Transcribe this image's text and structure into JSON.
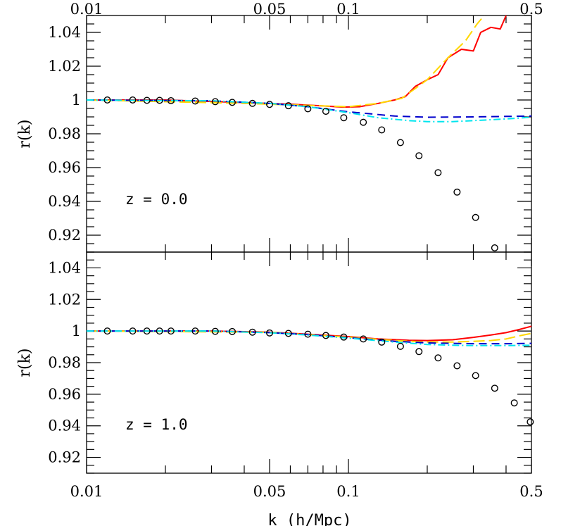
{
  "chart_data": [
    {
      "type": "line",
      "panel": "top",
      "annotation": "z = 0.0",
      "ylabel": "r(k)",
      "xscale": "log",
      "xlim": [
        0.01,
        0.5
      ],
      "ylim": [
        0.91,
        1.05
      ],
      "x_tick_labels": [
        "0.01",
        "0.05",
        "0.1",
        "0.5"
      ],
      "x_tick_label_values": [
        0.01,
        0.05,
        0.1,
        0.5
      ],
      "y_tick_labels": [
        "0.92",
        "0.94",
        "0.96",
        "0.98",
        "1",
        "1.02",
        "1.04"
      ],
      "y_tick_label_values": [
        0.92,
        0.94,
        0.96,
        0.98,
        1.0,
        1.02,
        1.04
      ],
      "series": [
        {
          "style": "solid",
          "color": "#ff0000",
          "x": [
            0.01,
            0.02,
            0.04,
            0.06,
            0.08,
            0.095,
            0.11,
            0.13,
            0.15,
            0.165,
            0.18,
            0.2,
            0.22,
            0.24,
            0.27,
            0.3,
            0.32,
            0.35,
            0.38,
            0.4
          ],
          "y": [
            1.0,
            1.0,
            0.9985,
            0.9975,
            0.9965,
            0.9958,
            0.996,
            0.998,
            1.0,
            1.002,
            1.008,
            1.012,
            1.015,
            1.025,
            1.03,
            1.029,
            1.04,
            1.043,
            1.042,
            1.05
          ]
        },
        {
          "style": "long-dash",
          "color": "#ffd700",
          "x": [
            0.01,
            0.04,
            0.08,
            0.1,
            0.13,
            0.16,
            0.2,
            0.24,
            0.28,
            0.31,
            0.33
          ],
          "y": [
            1.0,
            0.998,
            0.9965,
            0.996,
            0.998,
            1.001,
            1.012,
            1.025,
            1.035,
            1.045,
            1.05
          ]
        },
        {
          "style": "dashed",
          "color": "#0000cc",
          "x": [
            0.01,
            0.03,
            0.05,
            0.07,
            0.1,
            0.15,
            0.2,
            0.3,
            0.4,
            0.5
          ],
          "y": [
            1.0,
            0.9995,
            0.998,
            0.996,
            0.993,
            0.9905,
            0.9898,
            0.99,
            0.9903,
            0.9905
          ]
        },
        {
          "style": "dash-dot",
          "color": "#00e5ee",
          "x": [
            0.01,
            0.03,
            0.05,
            0.07,
            0.1,
            0.13,
            0.17,
            0.2,
            0.25,
            0.3,
            0.4,
            0.5
          ],
          "y": [
            1.0,
            0.9995,
            0.998,
            0.996,
            0.9925,
            0.9895,
            0.9878,
            0.9872,
            0.9872,
            0.9878,
            0.9888,
            0.9898
          ]
        },
        {
          "style": "open-circle",
          "color": "#000000",
          "x": [
            0.012,
            0.015,
            0.017,
            0.019,
            0.021,
            0.026,
            0.031,
            0.036,
            0.043,
            0.05,
            0.059,
            0.07,
            0.082,
            0.096,
            0.114,
            0.134,
            0.158,
            0.186,
            0.22,
            0.26,
            0.306,
            0.362
          ],
          "y": [
            1.0,
            1.0,
            0.9998,
            0.9998,
            0.9996,
            0.9994,
            0.999,
            0.9986,
            0.998,
            0.9974,
            0.9966,
            0.9948,
            0.9933,
            0.9895,
            0.9868,
            0.9823,
            0.9748,
            0.967,
            0.957,
            0.9455,
            0.9305,
            0.9125
          ]
        }
      ]
    },
    {
      "type": "line",
      "panel": "bottom",
      "annotation": "z = 1.0",
      "ylabel": "r(k)",
      "xlabel": "k (h/Mpc)",
      "xscale": "log",
      "xlim": [
        0.01,
        0.5
      ],
      "ylim": [
        0.91,
        1.05
      ],
      "x_tick_labels": [
        "0.01",
        "0.05",
        "0.1",
        "0.5"
      ],
      "x_tick_label_values": [
        0.01,
        0.05,
        0.1,
        0.5
      ],
      "y_tick_labels": [
        "0.92",
        "0.94",
        "0.96",
        "0.98",
        "1",
        "1.02",
        "1.04"
      ],
      "y_tick_label_values": [
        0.92,
        0.94,
        0.96,
        0.98,
        1.0,
        1.02,
        1.04
      ],
      "series": [
        {
          "style": "solid",
          "color": "#ff0000",
          "x": [
            0.01,
            0.03,
            0.05,
            0.07,
            0.1,
            0.13,
            0.17,
            0.2,
            0.25,
            0.3,
            0.35,
            0.4,
            0.45,
            0.5
          ],
          "y": [
            1.0,
            1.0,
            0.9993,
            0.998,
            0.9965,
            0.995,
            0.9942,
            0.994,
            0.9945,
            0.996,
            0.9975,
            0.999,
            1.001,
            1.003
          ]
        },
        {
          "style": "long-dash",
          "color": "#ffd700",
          "x": [
            0.01,
            0.05,
            0.1,
            0.15,
            0.2,
            0.25,
            0.3,
            0.35,
            0.4,
            0.45,
            0.5
          ],
          "y": [
            1.0,
            0.9992,
            0.9962,
            0.994,
            0.993,
            0.993,
            0.9935,
            0.994,
            0.995,
            0.997,
            0.9985
          ]
        },
        {
          "style": "dashed",
          "color": "#0000cc",
          "x": [
            0.01,
            0.03,
            0.05,
            0.07,
            0.1,
            0.15,
            0.2,
            0.3,
            0.4,
            0.5
          ],
          "y": [
            1.0,
            1.0,
            0.999,
            0.9978,
            0.9958,
            0.9935,
            0.9925,
            0.992,
            0.992,
            0.9922
          ]
        },
        {
          "style": "dash-dot",
          "color": "#00e5ee",
          "x": [
            0.01,
            0.03,
            0.05,
            0.07,
            0.1,
            0.15,
            0.2,
            0.25,
            0.3,
            0.4,
            0.5
          ],
          "y": [
            1.0,
            1.0,
            0.9989,
            0.9975,
            0.9955,
            0.993,
            0.9915,
            0.991,
            0.9908,
            0.9908,
            0.991
          ]
        },
        {
          "style": "open-circle",
          "color": "#000000",
          "x": [
            0.012,
            0.015,
            0.017,
            0.019,
            0.021,
            0.026,
            0.031,
            0.036,
            0.043,
            0.05,
            0.059,
            0.07,
            0.082,
            0.096,
            0.114,
            0.134,
            0.158,
            0.186,
            0.22,
            0.26,
            0.306,
            0.362,
            0.43,
            0.495
          ],
          "y": [
            1.0,
            1.0,
            1.0,
            1.0,
            1.0,
            1.0,
            0.9998,
            0.9997,
            0.9993,
            0.9988,
            0.9985,
            0.998,
            0.9972,
            0.9962,
            0.995,
            0.993,
            0.9903,
            0.987,
            0.983,
            0.978,
            0.9718,
            0.9638,
            0.9545,
            0.9425
          ]
        }
      ]
    }
  ]
}
